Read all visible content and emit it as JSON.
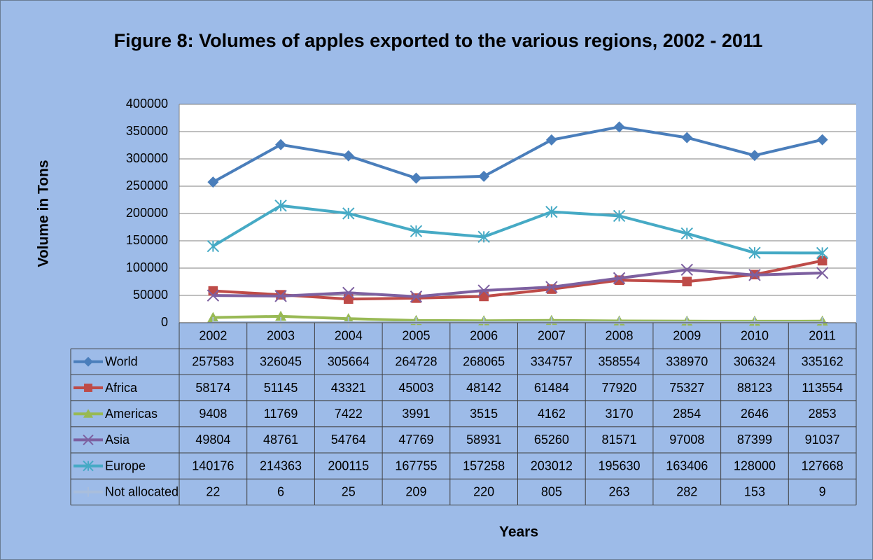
{
  "chart_data": {
    "type": "line",
    "title": "Figure 8: Volumes of apples exported to the various regions, 2002 - 2011",
    "ylabel": "Volume in Tons",
    "xlabel": "Years",
    "categories": [
      "2002",
      "2003",
      "2004",
      "2005",
      "2006",
      "2007",
      "2008",
      "2009",
      "2010",
      "2011"
    ],
    "ylim": [
      0,
      400000
    ],
    "yticks": [
      0,
      50000,
      100000,
      150000,
      200000,
      250000,
      300000,
      350000,
      400000
    ],
    "grid": true,
    "series": [
      {
        "name": "World",
        "color": "#4a7ebb",
        "marker": "diamond",
        "values": [
          257583,
          326045,
          305664,
          264728,
          268065,
          334757,
          358554,
          338970,
          306324,
          335162
        ]
      },
      {
        "name": "Africa",
        "color": "#be4b48",
        "marker": "square",
        "values": [
          58174,
          51145,
          43321,
          45003,
          48142,
          61484,
          77920,
          75327,
          88123,
          113554
        ]
      },
      {
        "name": "Americas",
        "color": "#98b954",
        "marker": "triangle",
        "values": [
          9408,
          11769,
          7422,
          3991,
          3515,
          4162,
          3170,
          2854,
          2646,
          2853
        ]
      },
      {
        "name": "Asia",
        "color": "#7d60a0",
        "marker": "x",
        "values": [
          49804,
          48761,
          54764,
          47769,
          58931,
          65260,
          81571,
          97008,
          87399,
          91037
        ]
      },
      {
        "name": "Europe",
        "color": "#46aac5",
        "marker": "star",
        "values": [
          140176,
          214363,
          200115,
          167755,
          157258,
          203012,
          195630,
          163406,
          128000,
          127668
        ]
      },
      {
        "name": "Not allocated",
        "color": "#a9bedc",
        "marker": "plus",
        "values": [
          22,
          6,
          25,
          209,
          220,
          805,
          263,
          282,
          153,
          9
        ]
      }
    ]
  }
}
